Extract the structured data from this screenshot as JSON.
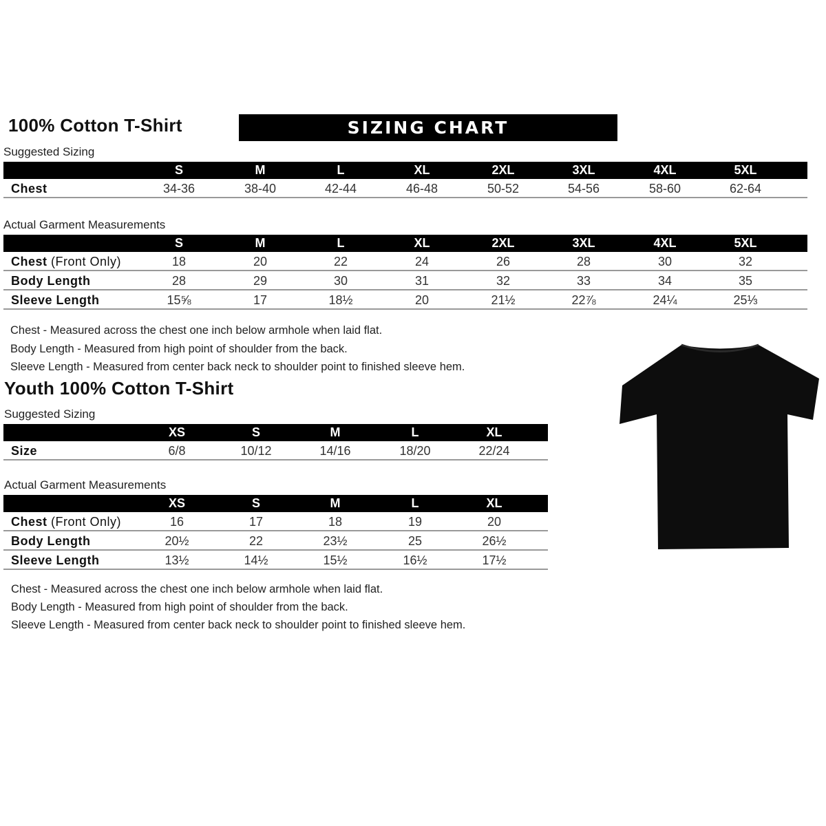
{
  "adult": {
    "title": "100% Cotton T-Shirt",
    "banner": "SIZING CHART",
    "suggested": {
      "label": "Suggested Sizing",
      "headers": [
        "S",
        "M",
        "L",
        "XL",
        "2XL",
        "3XL",
        "4XL",
        "5XL"
      ],
      "rows": [
        {
          "label": "Chest",
          "label_note": "",
          "values": [
            "34-36",
            "38-40",
            "42-44",
            "46-48",
            "50-52",
            "54-56",
            "58-60",
            "62-64"
          ]
        }
      ]
    },
    "actual": {
      "label": "Actual Garment Measurements",
      "headers": [
        "S",
        "M",
        "L",
        "XL",
        "2XL",
        "3XL",
        "4XL",
        "5XL"
      ],
      "rows": [
        {
          "label": "Chest",
          "label_note": " (Front Only)",
          "values": [
            "18",
            "20",
            "22",
            "24",
            "26",
            "28",
            "30",
            "32"
          ]
        },
        {
          "label": "Body Length",
          "label_note": "",
          "values": [
            "28",
            "29",
            "30",
            "31",
            "32",
            "33",
            "34",
            "35"
          ]
        },
        {
          "label": "Sleeve Length",
          "label_note": "",
          "values": [
            "15⅝",
            "17",
            "18½",
            "20",
            "21½",
            "22⅞",
            "24¼",
            "25⅓"
          ]
        }
      ]
    },
    "notes": [
      "Chest - Measured across the chest one inch below armhole when laid flat.",
      "Body Length - Measured from high point of shoulder from the back.",
      "Sleeve Length - Measured from center back neck to shoulder point to finished sleeve hem."
    ]
  },
  "youth": {
    "title": "Youth 100% Cotton T-Shirt",
    "suggested": {
      "label": "Suggested Sizing",
      "headers": [
        "XS",
        "S",
        "M",
        "L",
        "XL"
      ],
      "rows": [
        {
          "label": "Size",
          "label_note": "",
          "values": [
            "6/8",
            "10/12",
            "14/16",
            "18/20",
            "22/24"
          ]
        }
      ]
    },
    "actual": {
      "label": "Actual Garment Measurements",
      "headers": [
        "XS",
        "S",
        "M",
        "L",
        "XL"
      ],
      "rows": [
        {
          "label": "Chest",
          "label_note": " (Front Only)",
          "values": [
            "16",
            "17",
            "18",
            "19",
            "20"
          ]
        },
        {
          "label": "Body Length",
          "label_note": "",
          "values": [
            "20½",
            "22",
            "23½",
            "25",
            "26½"
          ]
        },
        {
          "label": "Sleeve Length",
          "label_note": "",
          "values": [
            "13½",
            "14½",
            "15½",
            "16½",
            "17½"
          ]
        }
      ]
    },
    "notes": [
      "Chest - Measured across the chest one inch below armhole when laid flat.",
      "Body Length - Measured from high point of shoulder from the back.",
      "Sleeve Length - Measured from center back neck to shoulder point to finished sleeve hem."
    ]
  },
  "tshirt_image": {
    "icon": "tshirt-icon",
    "color": "#0d0d0d"
  }
}
